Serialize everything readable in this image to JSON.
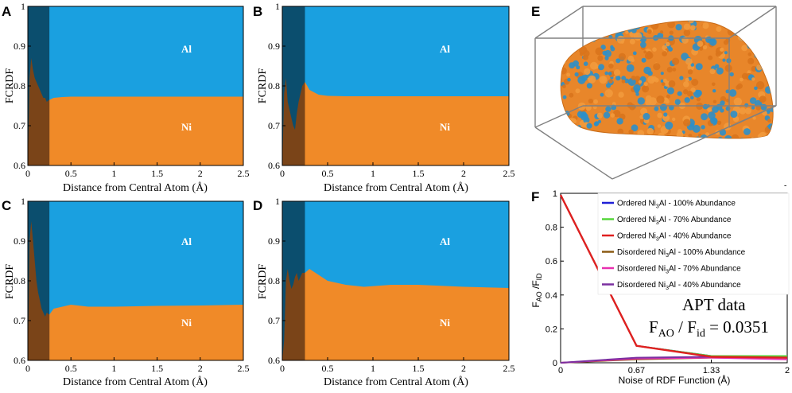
{
  "figure": {
    "colors": {
      "al": "#1aa0e0",
      "ni": "#f08a28",
      "shade_dark": "#0b4e6e",
      "shade_brown": "#7a4418",
      "frame": "#000000"
    }
  },
  "chart_data": [
    {
      "panel": "A",
      "type": "area",
      "xlabel": "Distance from Central Atom (Å)",
      "ylabel": "FCRDF",
      "xlim": [
        0,
        2.5
      ],
      "ylim": [
        0.6,
        1
      ],
      "xticks": [
        "0",
        "0.5",
        "1",
        "1.5",
        "2",
        "2.5"
      ],
      "yticks": [
        "0.6",
        "0.7",
        "0.8",
        "0.9",
        "1"
      ],
      "shaded_region": [
        0,
        0.25
      ],
      "labels": {
        "upper": "Al",
        "lower": "Ni"
      },
      "series": [
        {
          "name": "Ni fraction",
          "x": [
            0,
            0.02,
            0.04,
            0.06,
            0.08,
            0.1,
            0.12,
            0.14,
            0.16,
            0.18,
            0.2,
            0.22,
            0.25,
            0.3,
            0.4,
            0.5,
            0.7,
            1.0,
            1.5,
            2.0,
            2.5
          ],
          "values": [
            0.6,
            0.82,
            0.87,
            0.84,
            0.82,
            0.81,
            0.8,
            0.79,
            0.78,
            0.77,
            0.77,
            0.76,
            0.765,
            0.77,
            0.772,
            0.773,
            0.773,
            0.773,
            0.773,
            0.773,
            0.773
          ]
        }
      ]
    },
    {
      "panel": "B",
      "type": "area",
      "xlabel": "Distance from Central Atom (Å)",
      "ylabel": "FCRDF",
      "xlim": [
        0,
        2.5
      ],
      "ylim": [
        0.6,
        1
      ],
      "xticks": [
        "0",
        "0.5",
        "1",
        "1.5",
        "2",
        "2.5"
      ],
      "yticks": [
        "0.6",
        "0.7",
        "0.8",
        "0.9",
        "1"
      ],
      "shaded_region": [
        0,
        0.25
      ],
      "labels": {
        "upper": "Al",
        "lower": "Ni"
      },
      "series": [
        {
          "name": "Ni fraction",
          "x": [
            0,
            0.02,
            0.04,
            0.06,
            0.08,
            0.1,
            0.12,
            0.14,
            0.16,
            0.18,
            0.2,
            0.22,
            0.25,
            0.3,
            0.4,
            0.5,
            0.7,
            1.0,
            1.5,
            2.0,
            2.5
          ],
          "values": [
            0.6,
            0.78,
            0.82,
            0.76,
            0.74,
            0.72,
            0.7,
            0.69,
            0.73,
            0.76,
            0.78,
            0.8,
            0.81,
            0.79,
            0.778,
            0.775,
            0.774,
            0.774,
            0.774,
            0.774,
            0.774
          ]
        }
      ]
    },
    {
      "panel": "C",
      "type": "area",
      "xlabel": "Distance from Central Atom (Å)",
      "ylabel": "FCRDF",
      "xlim": [
        0,
        2.5
      ],
      "ylim": [
        0.6,
        1
      ],
      "xticks": [
        "0",
        "0.5",
        "1",
        "1.5",
        "2",
        "2.5"
      ],
      "yticks": [
        "0.6",
        "0.7",
        "0.8",
        "0.9",
        "1"
      ],
      "shaded_region": [
        0,
        0.25
      ],
      "labels": {
        "upper": "Al",
        "lower": "Ni"
      },
      "series": [
        {
          "name": "Ni fraction",
          "x": [
            0,
            0.02,
            0.04,
            0.06,
            0.08,
            0.1,
            0.12,
            0.14,
            0.16,
            0.18,
            0.2,
            0.22,
            0.25,
            0.3,
            0.4,
            0.5,
            0.7,
            1.0,
            1.5,
            2.0,
            2.5
          ],
          "values": [
            0.6,
            0.9,
            0.95,
            0.9,
            0.85,
            0.8,
            0.77,
            0.75,
            0.73,
            0.72,
            0.71,
            0.72,
            0.715,
            0.73,
            0.735,
            0.74,
            0.735,
            0.735,
            0.737,
            0.738,
            0.74
          ]
        }
      ]
    },
    {
      "panel": "D",
      "type": "area",
      "xlabel": "Distance from Central Atom (Å)",
      "ylabel": "FCRDF",
      "xlim": [
        0,
        2.5
      ],
      "ylim": [
        0.6,
        1
      ],
      "xticks": [
        "0",
        "0.5",
        "1",
        "1.5",
        "2",
        "2.5"
      ],
      "yticks": [
        "0.6",
        "0.7",
        "0.8",
        "0.9",
        "1"
      ],
      "shaded_region": [
        0,
        0.25
      ],
      "labels": {
        "upper": "Al",
        "lower": "Ni"
      },
      "series": [
        {
          "name": "Ni fraction",
          "x": [
            0,
            0.02,
            0.04,
            0.06,
            0.08,
            0.1,
            0.12,
            0.14,
            0.16,
            0.18,
            0.2,
            0.22,
            0.25,
            0.3,
            0.4,
            0.5,
            0.7,
            0.9,
            1.2,
            1.5,
            2.0,
            2.5
          ],
          "values": [
            0.6,
            0.65,
            0.8,
            0.83,
            0.8,
            0.78,
            0.79,
            0.81,
            0.82,
            0.8,
            0.81,
            0.82,
            0.82,
            0.83,
            0.815,
            0.8,
            0.79,
            0.785,
            0.79,
            0.79,
            0.785,
            0.782
          ]
        }
      ]
    },
    {
      "panel": "F",
      "type": "line",
      "xlabel": "Noise of RDF Function (Å)",
      "ylabel": "F_AO / F_ID",
      "xlim": [
        0,
        2
      ],
      "ylim": [
        0,
        1
      ],
      "xticks": [
        "0",
        "0.67",
        "1.33",
        "2"
      ],
      "yticks": [
        "0",
        "0.2",
        "0.4",
        "0.6",
        "0.8",
        "1"
      ],
      "categories": [
        0,
        0.67,
        1.33,
        2
      ],
      "series": [
        {
          "name": "Ordered Ni3Al - 100% Abundance",
          "color": "#1f1fd6",
          "values": [
            0.99,
            0.1,
            0.04,
            0.03
          ]
        },
        {
          "name": "Ordered Ni3Al - 70% Abundance",
          "color": "#55d63a",
          "values": [
            0.99,
            0.1,
            0.04,
            0.04
          ]
        },
        {
          "name": "Ordered Ni3Al - 40% Abundance",
          "color": "#e02020",
          "values": [
            0.99,
            0.1,
            0.035,
            0.03
          ]
        },
        {
          "name": "Disordered Ni3Al - 100% Abundance",
          "color": "#8b5a14",
          "values": [
            0.0,
            0.02,
            0.03,
            0.03
          ]
        },
        {
          "name": "Disordered Ni3Al - 70% Abundance",
          "color": "#e830b0",
          "values": [
            0.0,
            0.025,
            0.03,
            0.02
          ]
        },
        {
          "name": "Disordered Ni3Al - 40% Abundance",
          "color": "#7b2fa0",
          "values": [
            0.0,
            0.03,
            0.035,
            0.03
          ]
        }
      ],
      "annotations": {
        "title": "APT data",
        "ratio": "F_AO / F_id = 0.0351"
      }
    }
  ],
  "panel_E": {
    "letter": "E",
    "description_label": "3D APT point cloud"
  },
  "panel_F_text": {
    "letter": "F",
    "legend": [
      {
        "pre": "Ordered Ni",
        "sub": "3",
        "post": "Al - 100% Abundance"
      },
      {
        "pre": "Ordered Ni",
        "sub": "3",
        "post": "Al - 70% Abundance"
      },
      {
        "pre": "Ordered Ni",
        "sub": "3",
        "post": "Al - 40% Abundance"
      },
      {
        "pre": "Disordered Ni",
        "sub": "3",
        "post": "Al - 100% Abundance"
      },
      {
        "pre": "Disordered Ni",
        "sub": "3",
        "post": "Al - 70% Abundance"
      },
      {
        "pre": "Disordered Ni",
        "sub": "3",
        "post": "Al - 40% Abundance"
      }
    ],
    "ylabel_main_1": "F",
    "ylabel_sub_1": "AO",
    "ylabel_main_2": " /F",
    "ylabel_sub_2": "ID",
    "apt_title": "APT data",
    "ratio_pre": "F",
    "ratio_sub1": "AO",
    "ratio_mid": " / F",
    "ratio_sub2": "id",
    "ratio_post": " = 0.0351"
  }
}
